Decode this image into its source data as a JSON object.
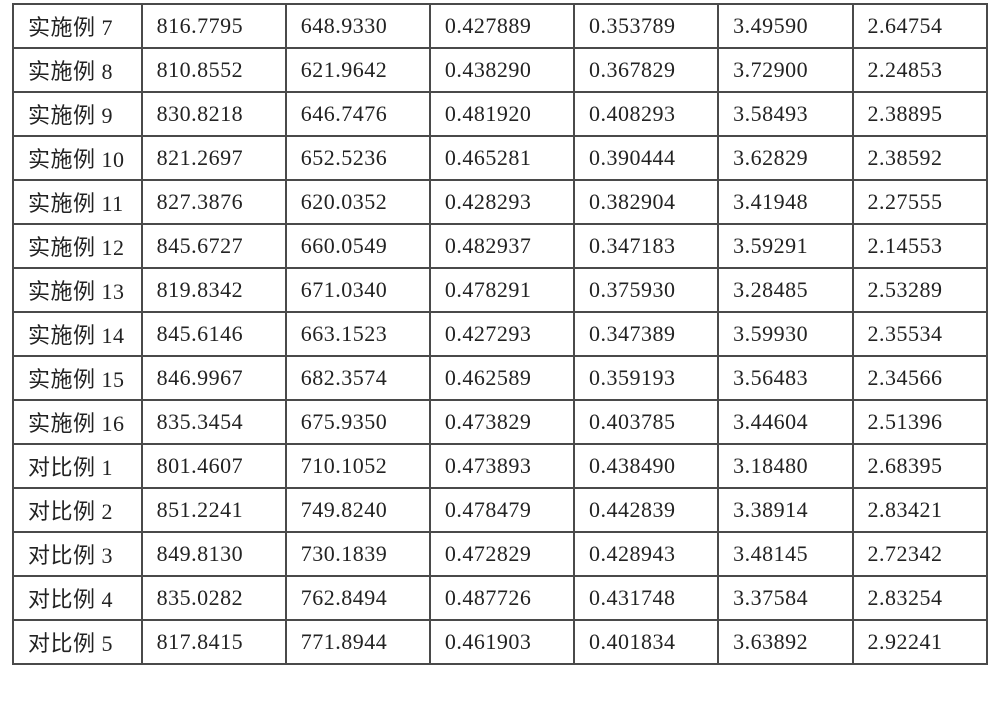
{
  "table": {
    "col_widths_pct": [
      13.2,
      14.8,
      14.8,
      14.8,
      14.8,
      13.8,
      13.8
    ],
    "border_color": "#4a4a4a",
    "background_color": "#ffffff",
    "text_color": "#222222",
    "font_family": "SimSun",
    "font_size_pt": 16,
    "rows": [
      {
        "label": "实施例 7",
        "c1": "816.7795",
        "c2": "648.9330",
        "c3": "0.427889",
        "c4": "0.353789",
        "c5": "3.49590",
        "c6": "2.64754"
      },
      {
        "label": "实施例 8",
        "c1": "810.8552",
        "c2": "621.9642",
        "c3": "0.438290",
        "c4": "0.367829",
        "c5": "3.72900",
        "c6": "2.24853"
      },
      {
        "label": "实施例 9",
        "c1": "830.8218",
        "c2": "646.7476",
        "c3": "0.481920",
        "c4": "0.408293",
        "c5": "3.58493",
        "c6": "2.38895"
      },
      {
        "label": "实施例 10",
        "c1": "821.2697",
        "c2": "652.5236",
        "c3": "0.465281",
        "c4": "0.390444",
        "c5": "3.62829",
        "c6": "2.38592"
      },
      {
        "label": "实施例 11",
        "c1": "827.3876",
        "c2": "620.0352",
        "c3": "0.428293",
        "c4": "0.382904",
        "c5": "3.41948",
        "c6": "2.27555"
      },
      {
        "label": "实施例 12",
        "c1": "845.6727",
        "c2": "660.0549",
        "c3": "0.482937",
        "c4": "0.347183",
        "c5": "3.59291",
        "c6": "2.14553"
      },
      {
        "label": "实施例 13",
        "c1": "819.8342",
        "c2": "671.0340",
        "c3": "0.478291",
        "c4": "0.375930",
        "c5": "3.28485",
        "c6": "2.53289"
      },
      {
        "label": "实施例 14",
        "c1": "845.6146",
        "c2": "663.1523",
        "c3": "0.427293",
        "c4": "0.347389",
        "c5": "3.59930",
        "c6": "2.35534"
      },
      {
        "label": "实施例 15",
        "c1": "846.9967",
        "c2": "682.3574",
        "c3": "0.462589",
        "c4": "0.359193",
        "c5": "3.56483",
        "c6": "2.34566"
      },
      {
        "label": "实施例 16",
        "c1": "835.3454",
        "c2": "675.9350",
        "c3": "0.473829",
        "c4": "0.403785",
        "c5": "3.44604",
        "c6": "2.51396"
      },
      {
        "label": "对比例 1",
        "c1": "801.4607",
        "c2": "710.1052",
        "c3": "0.473893",
        "c4": "0.438490",
        "c5": "3.18480",
        "c6": "2.68395"
      },
      {
        "label": "对比例 2",
        "c1": "851.2241",
        "c2": "749.8240",
        "c3": "0.478479",
        "c4": "0.442839",
        "c5": "3.38914",
        "c6": "2.83421"
      },
      {
        "label": "对比例 3",
        "c1": "849.8130",
        "c2": "730.1839",
        "c3": "0.472829",
        "c4": "0.428943",
        "c5": "3.48145",
        "c6": "2.72342"
      },
      {
        "label": "对比例 4",
        "c1": "835.0282",
        "c2": "762.8494",
        "c3": "0.487726",
        "c4": "0.431748",
        "c5": "3.37584",
        "c6": "2.83254"
      },
      {
        "label": "对比例 5",
        "c1": "817.8415",
        "c2": "771.8944",
        "c3": "0.461903",
        "c4": "0.401834",
        "c5": "3.63892",
        "c6": "2.92241"
      }
    ]
  }
}
